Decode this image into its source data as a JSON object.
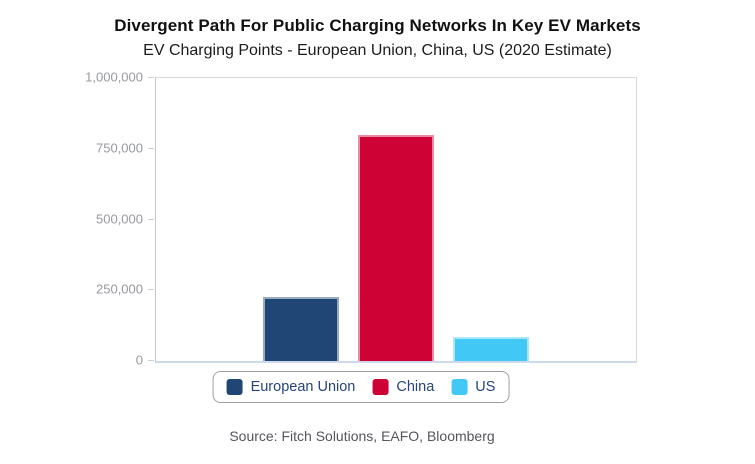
{
  "header": {
    "title": "Divergent Path For Public Charging Networks In Key EV Markets",
    "subtitle": "EV Charging Points - European Union, China, US (2020 Estimate)"
  },
  "source": "Source: Fitch Solutions, EAFO, Bloomberg",
  "colors": {
    "european_union": "#204675",
    "china": "#ce0234",
    "us": "#41c8f4",
    "legend_text": "#26457d",
    "axis_label": "#97999e",
    "baseline": "#ccdaec"
  },
  "chart_data": {
    "type": "bar",
    "title": "Divergent Path For Public Charging Networks In Key EV Markets",
    "subtitle": "EV Charging Points - European Union, China, US (2020 Estimate)",
    "categories": [
      "2020 Estimate"
    ],
    "series": [
      {
        "name": "European Union",
        "value": 225000,
        "color": "#204675"
      },
      {
        "name": "China",
        "value": 800000,
        "color": "#ce0234"
      },
      {
        "name": "US",
        "value": 85000,
        "color": "#41c8f4"
      }
    ],
    "xlabel": "",
    "ylabel": "",
    "ylim": [
      0,
      1000000
    ],
    "yticks": [
      0,
      250000,
      500000,
      750000,
      1000000
    ],
    "ytick_labels": [
      "0",
      "250,000",
      "500,000",
      "750,000",
      "1,000,000"
    ],
    "grid": false,
    "legend_position": "bottom"
  }
}
